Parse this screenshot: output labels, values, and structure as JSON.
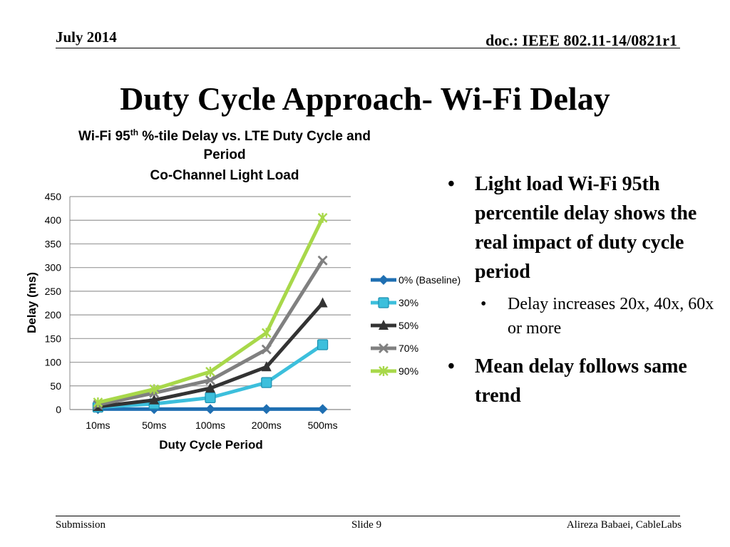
{
  "header": {
    "date": "July 2014",
    "doc": "doc.: IEEE 802.11-14/0821r1"
  },
  "slide": {
    "title": "Duty Cycle Approach- Wi-Fi Delay"
  },
  "bullets": {
    "b1": "Light load Wi-Fi 95th percentile delay shows the real impact of duty cycle period",
    "b1_sub": "Delay increases 20x, 40x, 60x or more",
    "b2": "Mean delay follows same trend",
    "marker": "•"
  },
  "footer": {
    "left": "Submission",
    "center": "Slide 9",
    "right": "Alireza Babaei, CableLabs"
  },
  "chart_data": {
    "type": "line",
    "title_line1_prefix": "Wi-Fi 95",
    "title_sup": "th",
    "title_line1_suffix": " %-tile Delay vs. LTE Duty Cycle and",
    "title_line2": "Period",
    "subtitle": "Co-Channel Light Load",
    "xlabel": "Duty Cycle Period",
    "ylabel": "Delay (ms)",
    "categories": [
      "10ms",
      "50ms",
      "100ms",
      "200ms",
      "500ms"
    ],
    "ylim": [
      0,
      450
    ],
    "yticks": [
      "0",
      "50",
      "100",
      "150",
      "200",
      "250",
      "300",
      "350",
      "400",
      "450"
    ],
    "grid": true,
    "legend_position": "right",
    "series": [
      {
        "name": "0% (Baseline)",
        "values": [
          1,
          1,
          1,
          1,
          1
        ],
        "color": "#1f6fb2",
        "marker": "diamond"
      },
      {
        "name": "30%",
        "values": [
          5,
          12,
          25,
          57,
          137
        ],
        "color": "#3cbfdc",
        "marker": "square"
      },
      {
        "name": "50%",
        "values": [
          6,
          20,
          45,
          90,
          225
        ],
        "color": "#333333",
        "marker": "triangle"
      },
      {
        "name": "70%",
        "values": [
          10,
          35,
          62,
          127,
          315
        ],
        "color": "#808080",
        "marker": "x"
      },
      {
        "name": "90%",
        "values": [
          15,
          43,
          80,
          162,
          405
        ],
        "color": "#a8d84a",
        "marker": "star"
      }
    ]
  }
}
